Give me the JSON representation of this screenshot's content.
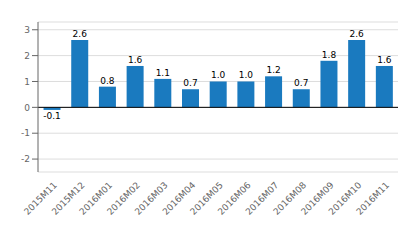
{
  "chart_data": {
    "type": "bar",
    "categories": [
      "2015M11",
      "2015M12",
      "2016M01",
      "2016M02",
      "2016M03",
      "2016M04",
      "2016M05",
      "2016M06",
      "2016M07",
      "2016M08",
      "2016M09",
      "2016M10",
      "2016M11"
    ],
    "values": [
      -0.1,
      2.6,
      0.8,
      1.6,
      1.1,
      0.7,
      1.0,
      1.0,
      1.2,
      0.7,
      1.8,
      2.6,
      1.6
    ],
    "value_labels": [
      "-0.1",
      "2.6",
      "0.8",
      "1.6",
      "1.1",
      "0.7",
      "1.0",
      "1.0",
      "1.2",
      "0.7",
      "1.8",
      "2.6",
      "1.6"
    ],
    "color": "#1a7abf",
    "ylim": [
      -2.5,
      3.3
    ],
    "yticks": [
      -2,
      -1,
      0,
      1,
      2,
      3
    ],
    "grid": true,
    "data_labels": true
  }
}
